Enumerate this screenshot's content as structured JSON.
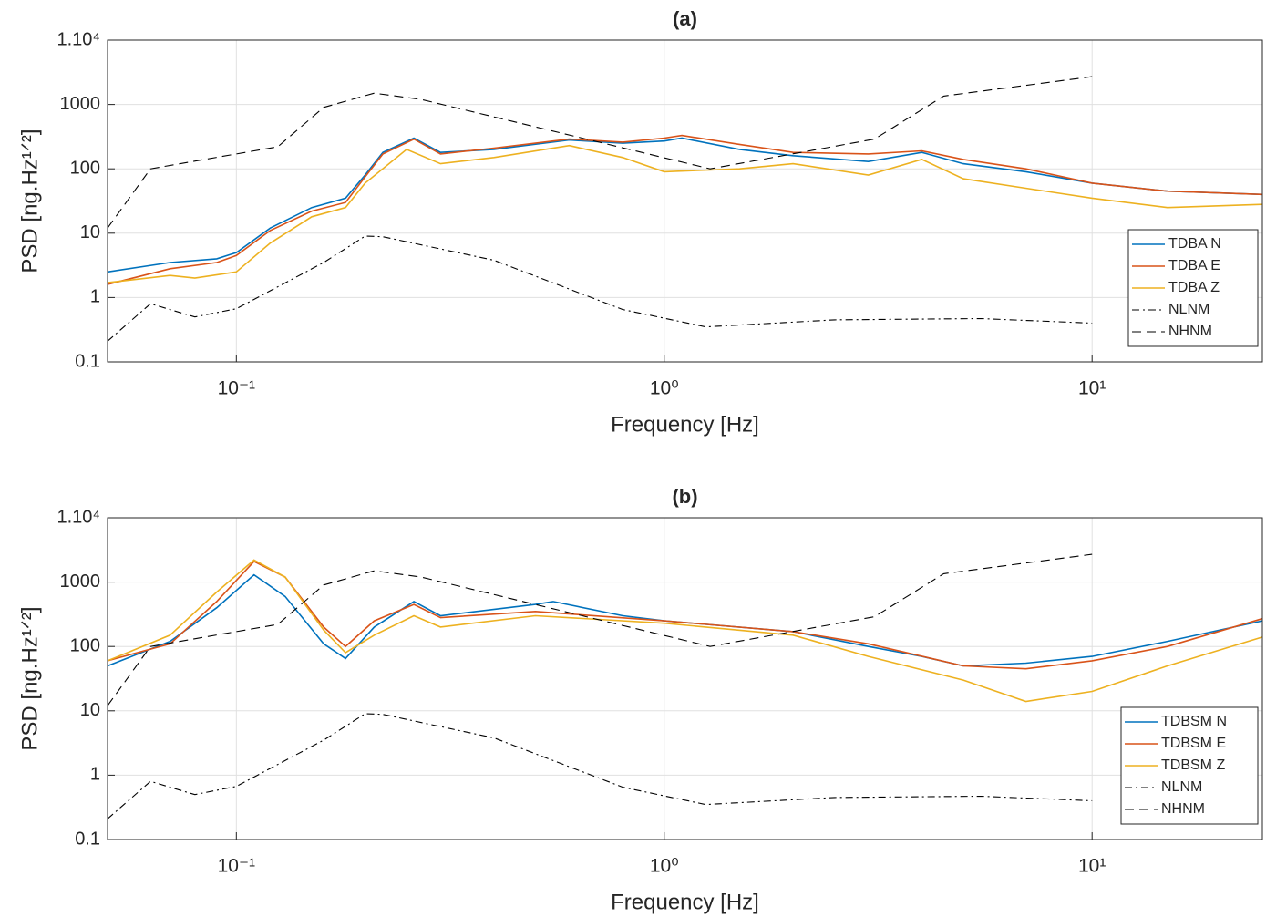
{
  "chart_data": [
    {
      "type": "line",
      "title": "(a)",
      "xlabel": "Frequency [Hz]",
      "ylabel": "PSD [ng.Hz¹ᐟ²]",
      "xscale": "log",
      "yscale": "log",
      "xlim": [
        0.05,
        25
      ],
      "ylim": [
        0.1,
        10000
      ],
      "xticks": [
        {
          "value": 0.1,
          "label": "10⁻¹"
        },
        {
          "value": 1,
          "label": "10⁰"
        },
        {
          "value": 10,
          "label": "10¹"
        }
      ],
      "yticks": [
        0.1,
        1,
        10,
        100,
        1000,
        {
          "value": 10000,
          "label": "1.10⁴"
        }
      ],
      "grid": true,
      "legend": "lower right",
      "series": [
        {
          "name": "TDBA N",
          "color": "#0072bd",
          "dash": "solid",
          "x": [
            0.05,
            0.07,
            0.09,
            0.1,
            0.12,
            0.15,
            0.18,
            0.2,
            0.22,
            0.26,
            0.3,
            0.4,
            0.6,
            0.8,
            1.0,
            1.1,
            1.5,
            2,
            3,
            4,
            5,
            7,
            10,
            15,
            25
          ],
          "values": [
            2.5,
            3.5,
            4,
            5,
            12,
            25,
            35,
            80,
            180,
            300,
            180,
            200,
            280,
            250,
            270,
            300,
            200,
            160,
            130,
            180,
            120,
            90,
            60,
            45,
            40
          ]
        },
        {
          "name": "TDBA E",
          "color": "#d95319",
          "dash": "solid",
          "x": [
            0.05,
            0.07,
            0.09,
            0.1,
            0.12,
            0.15,
            0.18,
            0.2,
            0.22,
            0.26,
            0.3,
            0.4,
            0.6,
            0.8,
            1.0,
            1.1,
            1.5,
            2,
            3,
            4,
            5,
            7,
            10,
            15,
            25
          ],
          "values": [
            1.6,
            2.8,
            3.5,
            4.5,
            11,
            22,
            30,
            75,
            170,
            290,
            170,
            210,
            290,
            260,
            300,
            330,
            240,
            180,
            170,
            190,
            140,
            100,
            60,
            45,
            40
          ]
        },
        {
          "name": "TDBA Z",
          "color": "#edb120",
          "dash": "solid",
          "x": [
            0.05,
            0.07,
            0.08,
            0.1,
            0.12,
            0.15,
            0.18,
            0.2,
            0.25,
            0.3,
            0.4,
            0.6,
            0.8,
            1.0,
            1.5,
            2,
            3,
            4,
            5,
            7,
            10,
            15,
            25
          ],
          "values": [
            1.7,
            2.2,
            2,
            2.5,
            7,
            18,
            25,
            60,
            200,
            120,
            150,
            230,
            150,
            90,
            100,
            120,
            80,
            140,
            70,
            50,
            35,
            25,
            28
          ]
        },
        {
          "name": "NLNM",
          "color": "#000000",
          "dash": "dashdot",
          "x": [
            0.05,
            0.063,
            0.08,
            0.1,
            0.16,
            0.2,
            0.22,
            0.4,
            0.8,
            1.25,
            2.5,
            5.5,
            10
          ],
          "values": [
            0.21,
            0.8,
            0.5,
            0.67,
            3.5,
            9,
            8.8,
            3.8,
            0.65,
            0.35,
            0.45,
            0.47,
            0.4
          ]
        },
        {
          "name": "NHNM",
          "color": "#000000",
          "dash": "dashed",
          "x": [
            0.05,
            0.063,
            0.125,
            0.16,
            0.21,
            0.27,
            1.28,
            3.1,
            4.5,
            10
          ],
          "values": [
            12,
            100,
            220,
            900,
            1500,
            1200,
            100,
            290,
            1350,
            2700
          ]
        }
      ]
    },
    {
      "type": "line",
      "title": "(b)",
      "xlabel": "Frequency [Hz]",
      "ylabel": "PSD [ng.Hz¹ᐟ²]",
      "xscale": "log",
      "yscale": "log",
      "xlim": [
        0.05,
        25
      ],
      "ylim": [
        0.1,
        10000
      ],
      "xticks": [
        {
          "value": 0.1,
          "label": "10⁻¹"
        },
        {
          "value": 1,
          "label": "10⁰"
        },
        {
          "value": 10,
          "label": "10¹"
        }
      ],
      "yticks": [
        0.1,
        1,
        10,
        100,
        1000,
        {
          "value": 10000,
          "label": "1.10⁴"
        }
      ],
      "grid": true,
      "legend": "lower right",
      "series": [
        {
          "name": "TDBSM N",
          "color": "#0072bd",
          "dash": "solid",
          "x": [
            0.05,
            0.07,
            0.09,
            0.11,
            0.13,
            0.16,
            0.18,
            0.21,
            0.26,
            0.3,
            0.5,
            0.55,
            0.8,
            1,
            2,
            3,
            4,
            5,
            7,
            10,
            15,
            25
          ],
          "values": [
            50,
            120,
            400,
            1300,
            600,
            110,
            65,
            200,
            500,
            300,
            450,
            500,
            300,
            250,
            170,
            100,
            70,
            50,
            55,
            70,
            120,
            250
          ]
        },
        {
          "name": "TDBSM E",
          "color": "#d95319",
          "dash": "solid",
          "x": [
            0.05,
            0.07,
            0.09,
            0.11,
            0.13,
            0.16,
            0.18,
            0.21,
            0.26,
            0.3,
            0.5,
            1,
            2,
            3,
            5,
            7,
            10,
            15,
            25
          ],
          "values": [
            60,
            110,
            500,
            2100,
            1200,
            200,
            100,
            250,
            450,
            280,
            350,
            250,
            170,
            110,
            50,
            45,
            60,
            100,
            270
          ]
        },
        {
          "name": "TDBSM Z",
          "color": "#edb120",
          "dash": "solid",
          "x": [
            0.05,
            0.07,
            0.09,
            0.11,
            0.13,
            0.16,
            0.18,
            0.21,
            0.26,
            0.3,
            0.5,
            1,
            2,
            3,
            5,
            7,
            10,
            15,
            25
          ],
          "values": [
            60,
            150,
            700,
            2200,
            1200,
            180,
            80,
            150,
            300,
            200,
            300,
            230,
            150,
            70,
            30,
            14,
            20,
            50,
            140
          ]
        },
        {
          "name": "NLNM",
          "color": "#000000",
          "dash": "dashdot",
          "x": [
            0.05,
            0.063,
            0.08,
            0.1,
            0.16,
            0.2,
            0.22,
            0.4,
            0.8,
            1.25,
            2.5,
            5.5,
            10
          ],
          "values": [
            0.21,
            0.8,
            0.5,
            0.67,
            3.5,
            9,
            8.8,
            3.8,
            0.65,
            0.35,
            0.45,
            0.47,
            0.4
          ]
        },
        {
          "name": "NHNM",
          "color": "#000000",
          "dash": "dashed",
          "x": [
            0.05,
            0.063,
            0.125,
            0.16,
            0.21,
            0.27,
            1.28,
            3.1,
            4.5,
            10
          ],
          "values": [
            12,
            100,
            220,
            900,
            1500,
            1200,
            100,
            290,
            1350,
            2700
          ]
        }
      ]
    }
  ]
}
